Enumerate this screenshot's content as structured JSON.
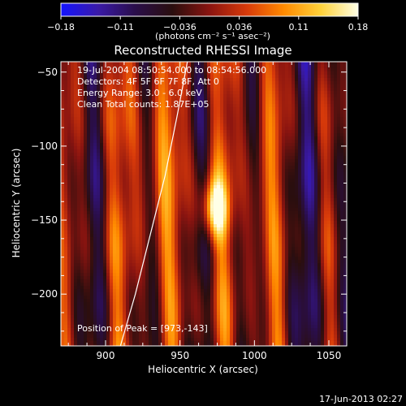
{
  "colorbar": {
    "ticks": [
      "−0.18",
      "−0.11",
      "−0.036",
      "0.036",
      "0.11",
      "0.18"
    ],
    "units": "(photons cm⁻² s⁻¹ asec⁻²)",
    "colors": [
      "#1414ff",
      "#3a1aa8",
      "#2a0e4a",
      "#2a0e0e",
      "#8a1410",
      "#d83a0a",
      "#ff8a00",
      "#ffd23a",
      "#ffffe6"
    ]
  },
  "info": {
    "time": "19-Jul-2004 08:50:54.000 to 08:54:56.000",
    "detectors": "Detectors: 4F 5F 6F 7F 8F, Att 0",
    "energy": "Energy Range: 3.0 - 6.0 keV",
    "clean": "Clean     Total counts: 1.87E+05",
    "peak": "Position of Peak = [973,-143]"
  },
  "footer": "17-Jun-2013 02:27",
  "chart_data": {
    "type": "heatmap",
    "title": "Reconstructed RHESSI Image",
    "xlabel": "Heliocentric X (arcsec)",
    "ylabel": "Heliocentric Y (arcsec)",
    "xlim": [
      870,
      1062
    ],
    "ylim": [
      -235,
      -43
    ],
    "xticks": [
      900,
      950,
      1000,
      1050
    ],
    "yticks": [
      -50,
      -100,
      -150,
      -200
    ],
    "peak": [
      973,
      -143
    ],
    "limb_curve": [
      [
        910,
        -235
      ],
      [
        920,
        -200
      ],
      [
        930,
        -160
      ],
      [
        940,
        -120
      ],
      [
        948,
        -80
      ],
      [
        955,
        -43
      ]
    ],
    "value_range": [
      -0.18,
      0.18
    ]
  }
}
